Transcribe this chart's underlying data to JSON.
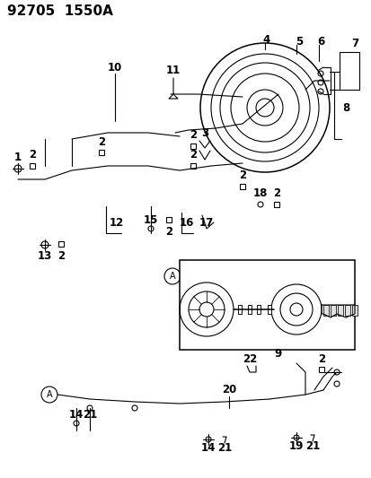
{
  "title": "92705  1550A",
  "bg_color": "#ffffff",
  "line_color": "#000000",
  "title_fontsize": 11,
  "label_fontsize": 7.5,
  "figsize": [
    4.14,
    5.33
  ],
  "dpi": 100
}
